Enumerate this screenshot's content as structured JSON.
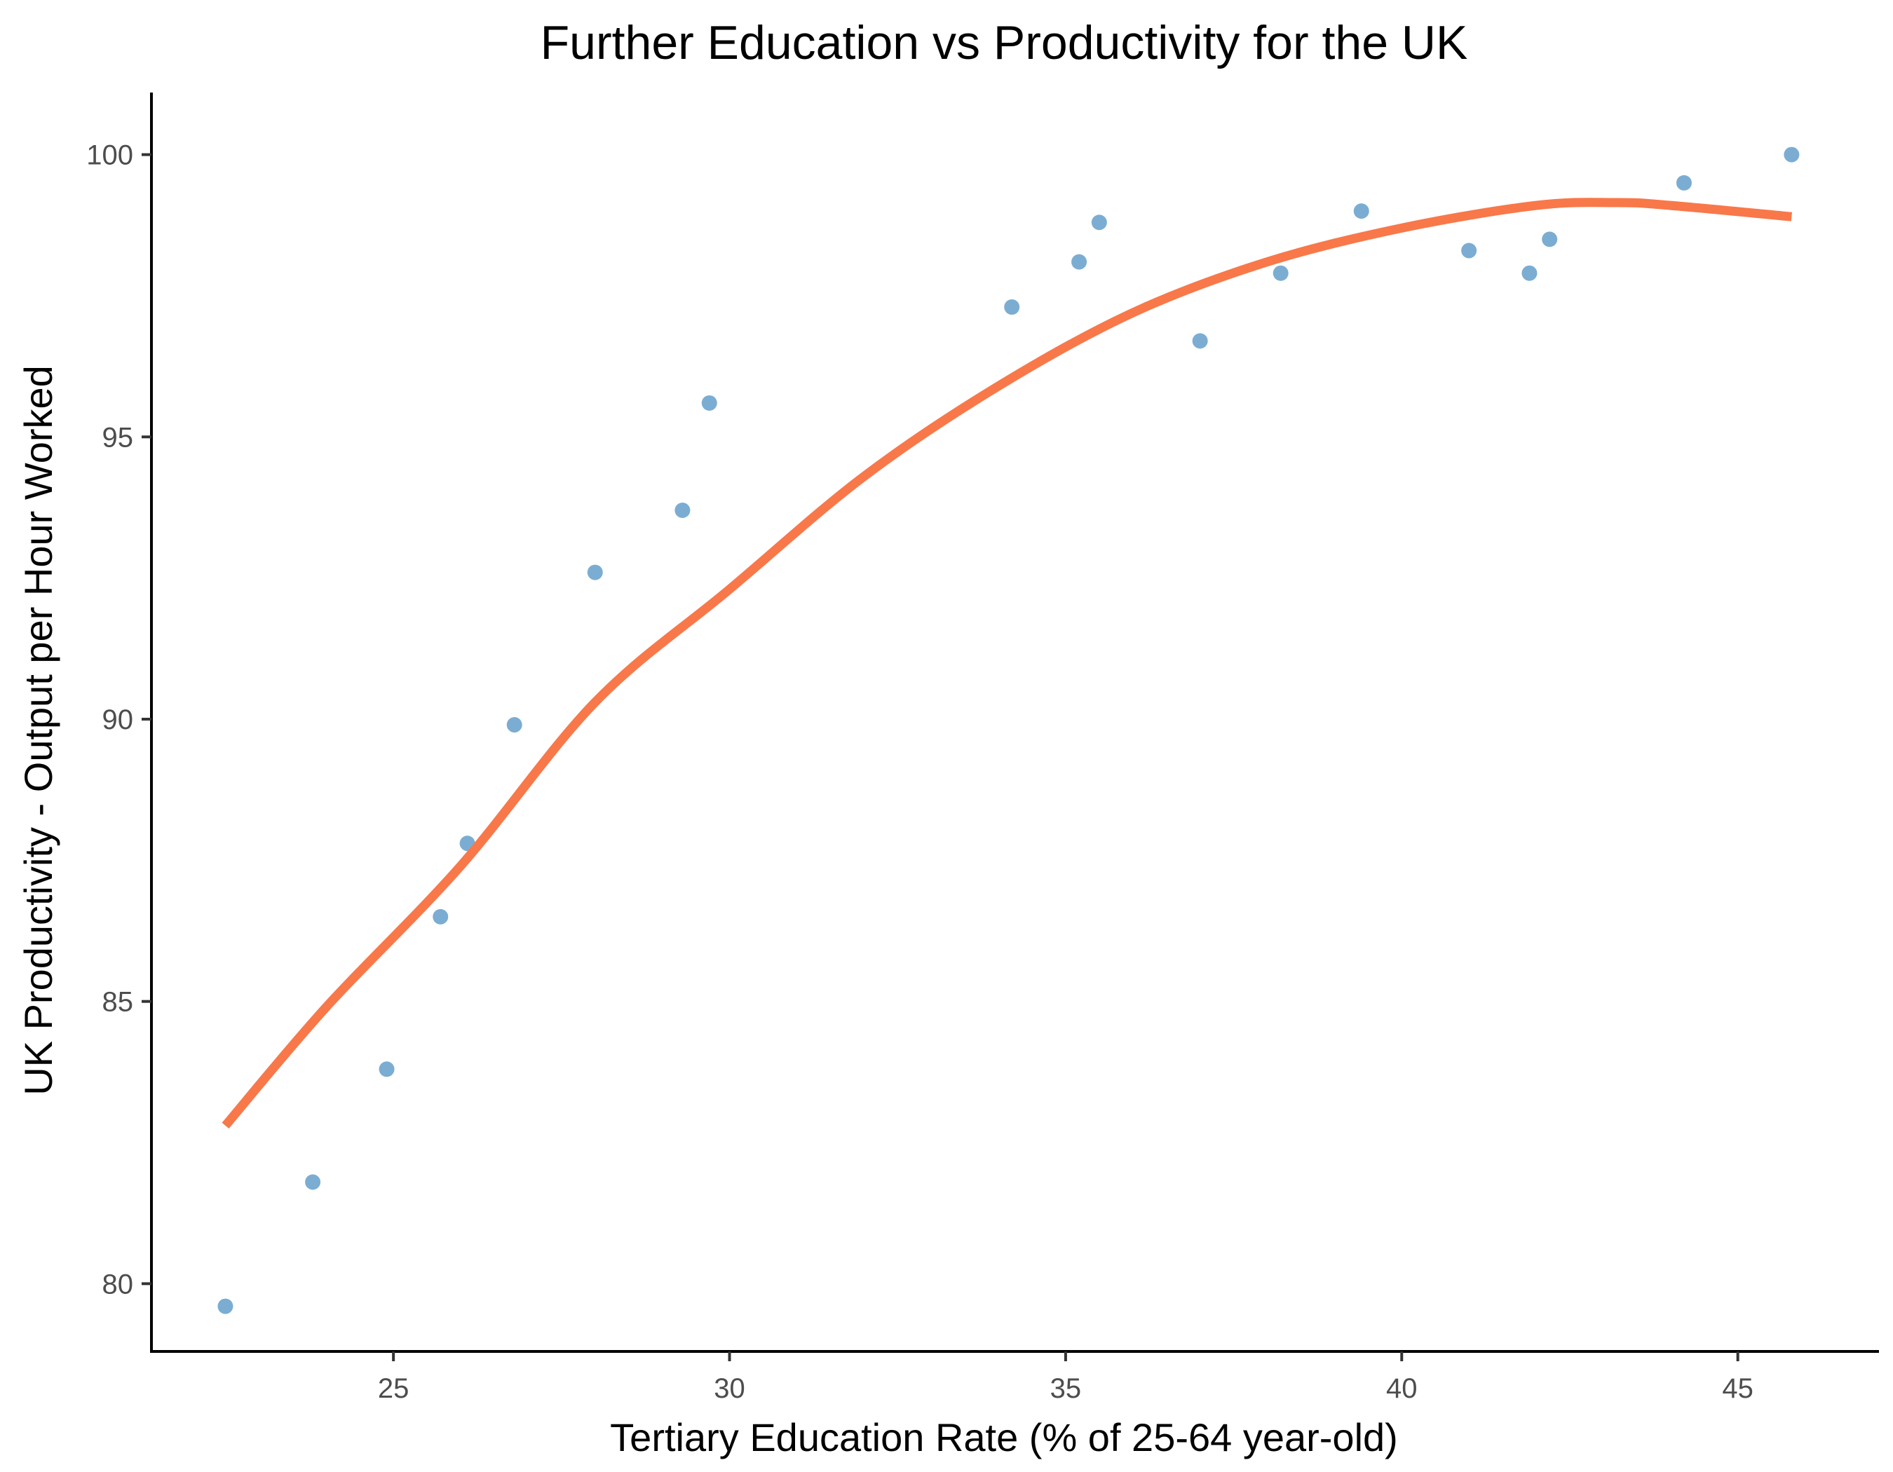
{
  "chart_data": {
    "type": "scatter",
    "title": "Further Education vs Productivity for the UK",
    "xlabel": "Tertiary Education Rate (% of 25-64 year-old)",
    "ylabel": "UK Productivity - Output per Hour Worked",
    "xlim": [
      21.4,
      47.1
    ],
    "ylim": [
      78.8,
      101.1
    ],
    "x_ticks": [
      25,
      30,
      35,
      40,
      45
    ],
    "y_ticks": [
      80,
      85,
      90,
      95,
      100
    ],
    "grid": false,
    "legend": "none",
    "series": [
      {
        "type": "scatter",
        "color": "#7BADD3",
        "points": [
          {
            "x": 22.5,
            "y": 79.6
          },
          {
            "x": 23.8,
            "y": 81.8
          },
          {
            "x": 24.9,
            "y": 83.8
          },
          {
            "x": 25.7,
            "y": 86.5
          },
          {
            "x": 26.1,
            "y": 87.8
          },
          {
            "x": 26.8,
            "y": 89.9
          },
          {
            "x": 28.0,
            "y": 92.6
          },
          {
            "x": 29.3,
            "y": 93.7
          },
          {
            "x": 29.7,
            "y": 95.6
          },
          {
            "x": 34.2,
            "y": 97.3
          },
          {
            "x": 35.2,
            "y": 98.1
          },
          {
            "x": 35.5,
            "y": 98.8
          },
          {
            "x": 37.0,
            "y": 96.7
          },
          {
            "x": 38.2,
            "y": 97.9
          },
          {
            "x": 39.4,
            "y": 99.0
          },
          {
            "x": 41.0,
            "y": 98.3
          },
          {
            "x": 41.9,
            "y": 97.9
          },
          {
            "x": 42.2,
            "y": 98.5
          },
          {
            "x": 44.2,
            "y": 99.5
          },
          {
            "x": 45.8,
            "y": 100.0
          }
        ]
      },
      {
        "type": "line",
        "color": "#F8784A",
        "points": [
          {
            "x": 22.5,
            "y": 82.8
          },
          {
            "x": 24.0,
            "y": 84.9
          },
          {
            "x": 26.0,
            "y": 87.4
          },
          {
            "x": 28.0,
            "y": 90.3
          },
          {
            "x": 30.0,
            "y": 92.3
          },
          {
            "x": 32.0,
            "y": 94.3
          },
          {
            "x": 34.0,
            "y": 95.9
          },
          {
            "x": 36.0,
            "y": 97.2
          },
          {
            "x": 38.0,
            "y": 98.1
          },
          {
            "x": 40.0,
            "y": 98.7
          },
          {
            "x": 42.0,
            "y": 99.1
          },
          {
            "x": 43.2,
            "y": 99.15
          },
          {
            "x": 44.0,
            "y": 99.1
          },
          {
            "x": 45.8,
            "y": 98.9
          }
        ]
      }
    ]
  }
}
